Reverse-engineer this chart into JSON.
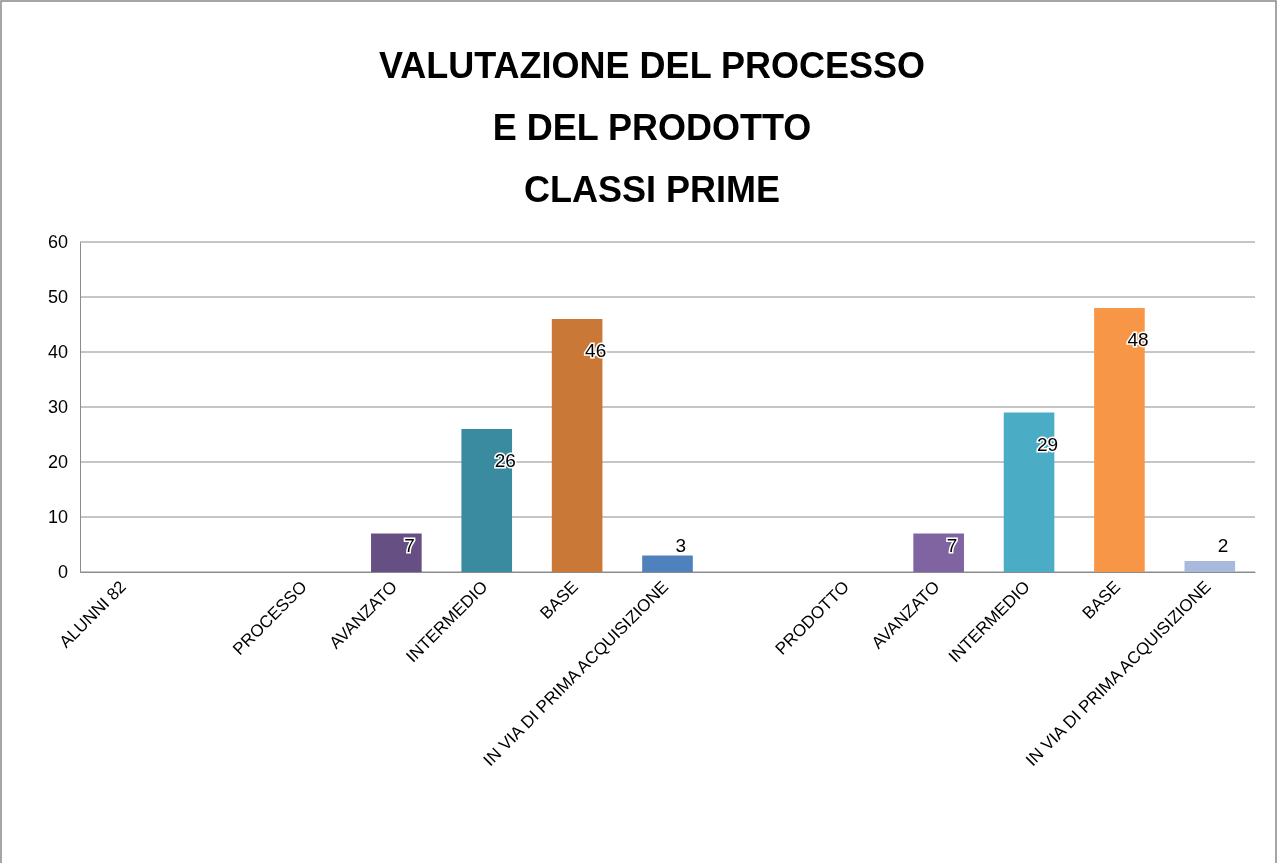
{
  "chart_data": {
    "type": "bar",
    "title": "VALUTAZIONE DEL PROCESSO\nE DEL PRODOTTO\nCLASSI PRIME",
    "categories": [
      "ALUNNI 82",
      null,
      "PROCESSO",
      "AVANZATO",
      "INTERMEDIO",
      "BASE",
      "IN VIA DI PRIMA ACQUISIZIONE",
      null,
      "PRODOTTO",
      "AVANZATO",
      "INTERMEDIO",
      "BASE",
      "IN VIA DI PRIMA ACQUISIZIONE"
    ],
    "values": [
      null,
      null,
      null,
      7,
      26,
      46,
      3,
      null,
      null,
      7,
      29,
      48,
      2
    ],
    "colors": [
      null,
      null,
      null,
      "#664f83",
      "#3a8ba0",
      "#c97838",
      "#4f81bd",
      null,
      null,
      "#8064a2",
      "#4bacc6",
      "#f79646",
      "#a7b9dc"
    ],
    "value_labels": [
      null,
      null,
      null,
      "7",
      "26",
      "46",
      "3",
      null,
      null,
      "7",
      "29",
      "48",
      "2"
    ],
    "ylim": [
      0,
      60
    ],
    "yticks": [
      0,
      10,
      20,
      30,
      40,
      50,
      60
    ],
    "grid": "y"
  }
}
